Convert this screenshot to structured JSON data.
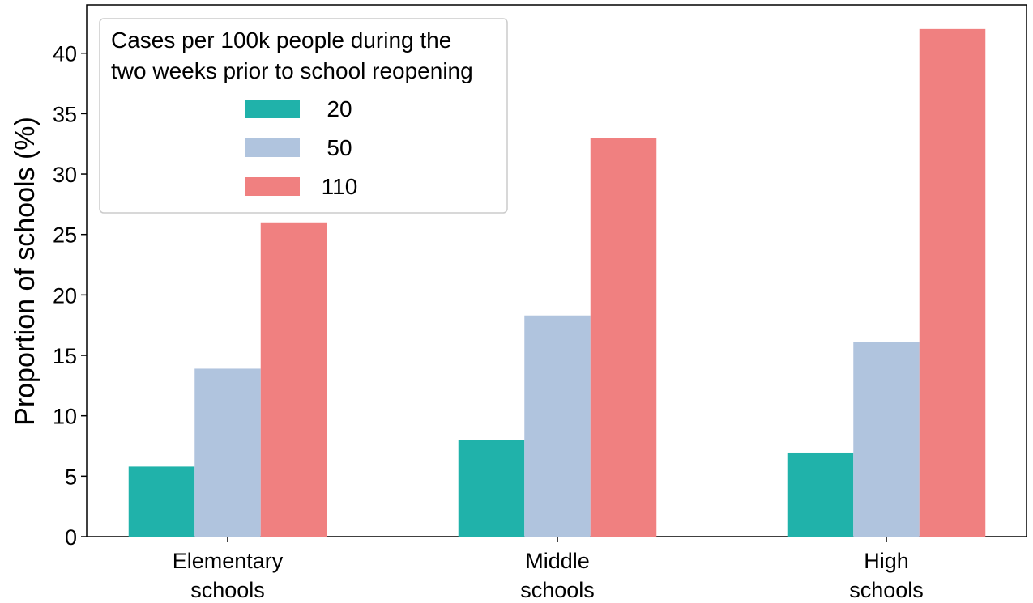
{
  "chart_data": {
    "type": "bar",
    "categories": [
      [
        "Elementary",
        "schools"
      ],
      [
        "Middle",
        "schools"
      ],
      [
        "High",
        "schools"
      ]
    ],
    "series": [
      {
        "name": "20",
        "color": "#20b2aa",
        "values": [
          5.8,
          8.0,
          6.9
        ]
      },
      {
        "name": "50",
        "color": "#b0c4de",
        "values": [
          13.9,
          18.3,
          16.1
        ]
      },
      {
        "name": "110",
        "color": "#f08080",
        "values": [
          26.0,
          33.0,
          42.0
        ]
      }
    ],
    "title": "",
    "xlabel": "",
    "ylabel": "Proportion of schools (%)",
    "ylim": [
      0,
      44
    ],
    "yticks": [
      0,
      5,
      10,
      15,
      20,
      25,
      30,
      35,
      40
    ],
    "grid": false,
    "legend": {
      "title_lines": [
        "Cases per 100k people during the",
        "two weeks prior to school reopening"
      ],
      "placement": "top-left"
    }
  }
}
